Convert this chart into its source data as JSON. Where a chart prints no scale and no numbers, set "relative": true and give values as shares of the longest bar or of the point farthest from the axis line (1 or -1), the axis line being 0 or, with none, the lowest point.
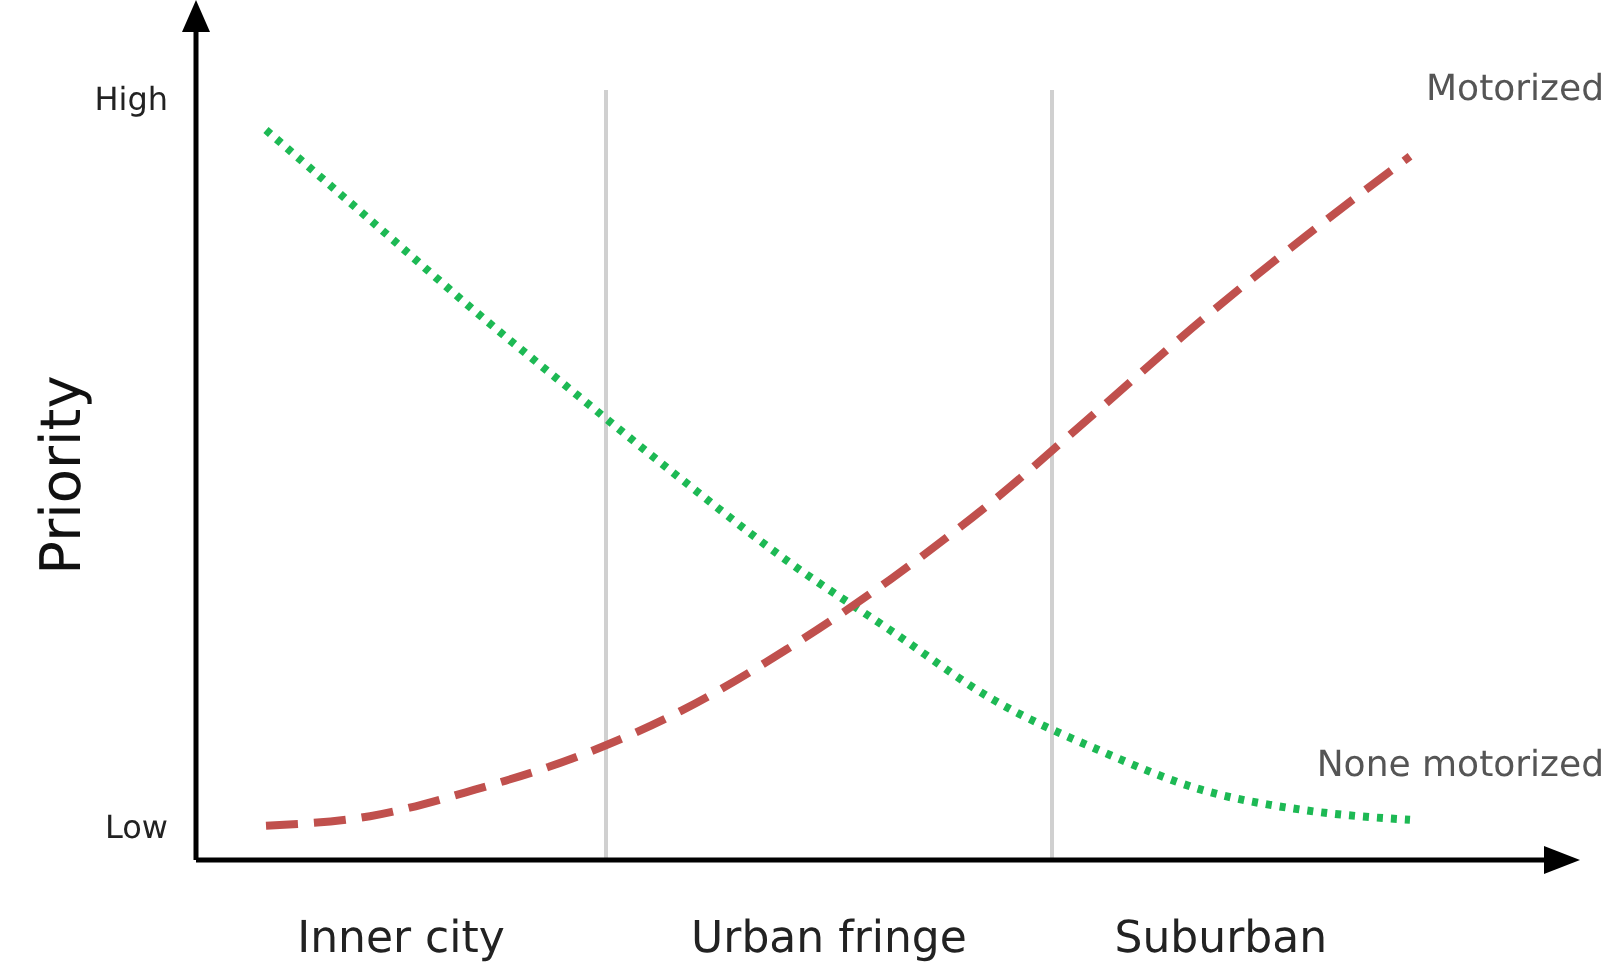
{
  "chart_data": {
    "type": "line",
    "ylabel": "Priority",
    "relative": true,
    "categories": [
      null,
      null,
      null,
      null,
      null,
      null,
      null,
      null,
      null,
      null,
      null,
      null
    ],
    "annotations": [
      "High",
      "Low",
      "Inner city",
      "Urban fringe",
      "Suburban"
    ],
    "series": [
      {
        "name": "None motorized",
        "color": "#1db954",
        "line_style": "dotted",
        "values": [
          1,
          0.877,
          0.753,
          0.636,
          0.521,
          0.411,
          0.315,
          0.219,
          0.151,
          0.096,
          0.068,
          0.055
        ]
      },
      {
        "name": "Motorized",
        "color": "#c0504d",
        "line_style": "dashed",
        "values": [
          0.047,
          0.06,
          0.096,
          0.142,
          0.205,
          0.288,
          0.384,
          0.493,
          0.616,
          0.74,
          0.855,
          0.964
        ]
      }
    ]
  }
}
